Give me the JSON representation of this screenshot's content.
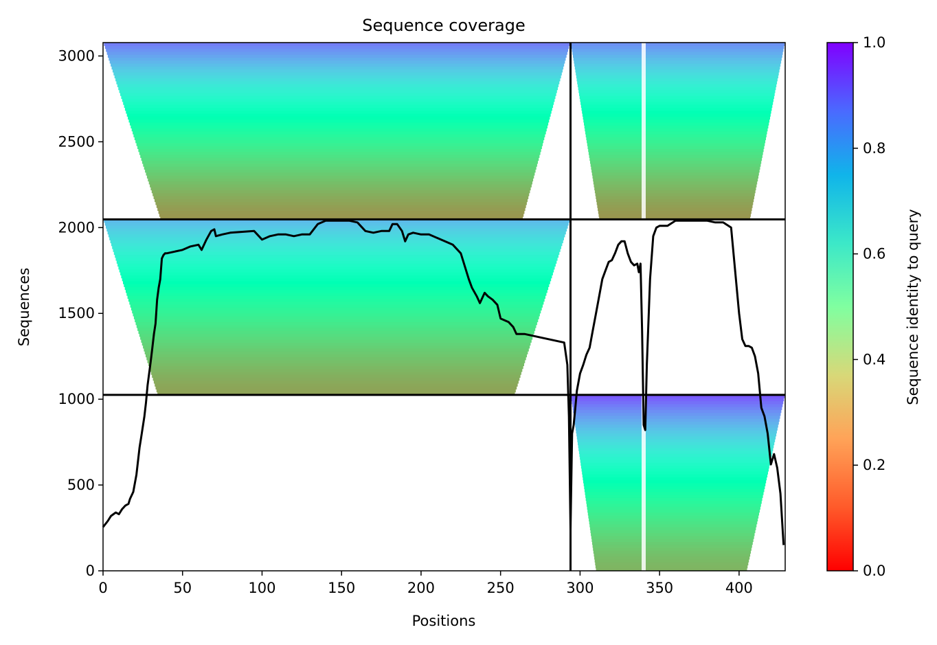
{
  "chart_data": {
    "type": "heatmap",
    "title": "Sequence coverage",
    "xlabel": "Positions",
    "ylabel": "Sequences",
    "xlim": [
      0,
      429
    ],
    "ylim": [
      0,
      3078
    ],
    "xticks": [
      0,
      50,
      100,
      150,
      200,
      250,
      300,
      350,
      400
    ],
    "yticks": [
      0,
      500,
      1000,
      1500,
      2000,
      2500,
      3000
    ],
    "colorbar": {
      "label": "Sequence identity to query",
      "range": [
        0.0,
        1.0
      ],
      "ticks": [
        "0.0",
        "0.2",
        "0.4",
        "0.6",
        "0.8",
        "1.0"
      ],
      "colormap": "rainbow_r"
    },
    "blocks": [
      {
        "x_start": 0,
        "x_end": 294,
        "y_start": 2048,
        "y_end": 3078,
        "identity_bottom": 0.2,
        "identity_top": 0.85,
        "coverage_note": "ragged left edge around x=20-40, right edge around x=260-294"
      },
      {
        "x_start": 294,
        "x_end": 429,
        "y_start": 2048,
        "y_end": 3078,
        "identity_bottom": 0.2,
        "identity_top": 0.82,
        "gap_column": 340
      },
      {
        "x_start": 0,
        "x_end": 294,
        "y_start": 1025,
        "y_end": 2048,
        "identity_bottom": 0.22,
        "identity_top": 0.75
      },
      {
        "x_start": 294,
        "x_end": 429,
        "y_start": 0,
        "y_end": 1025,
        "identity_bottom": 0.25,
        "identity_top": 0.9,
        "gap_column": 340
      }
    ],
    "separators": {
      "vertical_x": 294,
      "horizontal_y": [
        1025,
        2048
      ]
    },
    "coverage_line": {
      "x": [
        0,
        3,
        5,
        8,
        10,
        12,
        14,
        16,
        17,
        19,
        21,
        23,
        24,
        26,
        27,
        28,
        29,
        30,
        31,
        32,
        33,
        34,
        35,
        36,
        37,
        38,
        39,
        40,
        45,
        50,
        55,
        60,
        62,
        65,
        68,
        70,
        71,
        75,
        80,
        95,
        100,
        105,
        110,
        115,
        120,
        125,
        130,
        135,
        140,
        145,
        150,
        155,
        160,
        165,
        170,
        175,
        180,
        182,
        185,
        188,
        190,
        192,
        195,
        200,
        205,
        210,
        215,
        220,
        225,
        230,
        232,
        235,
        237,
        240,
        242,
        245,
        248,
        250,
        255,
        258,
        260,
        265,
        270,
        275,
        280,
        285,
        290,
        292,
        293,
        294,
        295,
        296,
        297,
        298,
        300,
        302,
        304,
        306,
        308,
        310,
        312,
        314,
        316,
        318,
        320,
        322,
        324,
        326,
        328,
        330,
        332,
        334,
        336,
        337,
        338,
        339,
        340,
        341,
        342,
        344,
        346,
        348,
        350,
        355,
        360,
        365,
        370,
        375,
        380,
        385,
        390,
        395,
        400,
        402,
        404,
        406,
        408,
        410,
        412,
        414,
        416,
        418,
        420,
        422,
        424,
        426,
        428
      ],
      "y": [
        255,
        290,
        320,
        340,
        330,
        360,
        380,
        390,
        420,
        460,
        560,
        720,
        780,
        900,
        980,
        1080,
        1150,
        1220,
        1300,
        1380,
        1440,
        1580,
        1650,
        1700,
        1820,
        1840,
        1850,
        1850,
        1860,
        1870,
        1890,
        1900,
        1870,
        1930,
        1980,
        1990,
        1950,
        1960,
        1970,
        1980,
        1930,
        1950,
        1960,
        1960,
        1950,
        1960,
        1960,
        2020,
        2040,
        2040,
        2040,
        2040,
        2030,
        1980,
        1970,
        1980,
        1980,
        2020,
        2020,
        1980,
        1920,
        1960,
        1970,
        1960,
        1960,
        1940,
        1920,
        1900,
        1850,
        1700,
        1650,
        1600,
        1560,
        1620,
        1600,
        1580,
        1550,
        1470,
        1450,
        1420,
        1380,
        1380,
        1370,
        1360,
        1350,
        1340,
        1330,
        1200,
        900,
        240,
        800,
        850,
        950,
        1050,
        1150,
        1200,
        1260,
        1300,
        1400,
        1500,
        1600,
        1700,
        1750,
        1800,
        1810,
        1850,
        1900,
        1920,
        1920,
        1850,
        1800,
        1780,
        1790,
        1740,
        1790,
        1400,
        850,
        820,
        1200,
        1700,
        1950,
        2000,
        2010,
        2010,
        2040,
        2040,
        2040,
        2040,
        2040,
        2030,
        2030,
        2000,
        1500,
        1350,
        1310,
        1310,
        1300,
        1250,
        1150,
        950,
        900,
        800,
        620,
        680,
        600,
        450,
        150
      ]
    }
  }
}
